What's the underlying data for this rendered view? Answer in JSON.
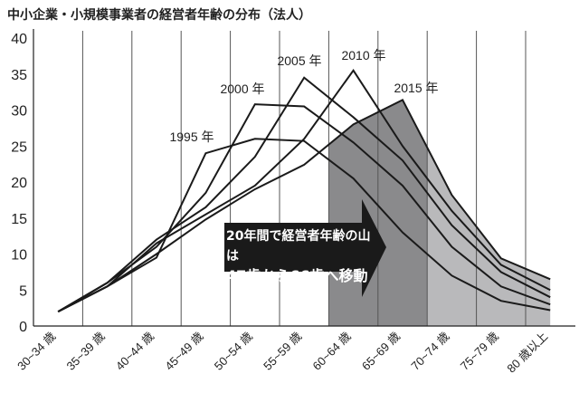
{
  "chart_data": {
    "type": "line",
    "title": "中小企業・小規模事業者の経営者年齢の分布（法人）",
    "xlabel": "",
    "ylabel": "",
    "ylim": [
      0,
      40
    ],
    "yticks": [
      0,
      5,
      10,
      15,
      20,
      25,
      30,
      35,
      40
    ],
    "grid": "vertical",
    "categories": [
      "30~34 歳",
      "35~39 歳",
      "40~44 歳",
      "45~49 歳",
      "50~54 歳",
      "55~59 歳",
      "60~64 歳",
      "65~69 歳",
      "70~74 歳",
      "75~79 歳",
      "80 歳以上"
    ],
    "series": [
      {
        "name": "1995 年",
        "values": [
          2,
          5.5,
          9.5,
          24,
          26,
          25.7,
          20.5,
          13,
          7,
          3.5,
          2.2
        ]
      },
      {
        "name": "2000 年",
        "values": [
          2,
          6,
          11,
          18.5,
          30.8,
          30.5,
          25.5,
          19.5,
          11,
          5.5,
          3
        ]
      },
      {
        "name": "2005 年",
        "values": [
          2,
          6,
          12,
          16.5,
          23.5,
          34.5,
          29,
          23,
          14,
          7.5,
          4
        ]
      },
      {
        "name": "2010 年",
        "values": [
          2,
          5.5,
          11.5,
          15.5,
          19.5,
          26,
          35.5,
          25,
          16,
          8.5,
          5
        ]
      },
      {
        "name": "2015 年",
        "values": [
          2,
          5.5,
          10,
          14.8,
          19,
          22.4,
          28,
          31.4,
          18.2,
          9.4,
          6.5
        ]
      }
    ],
    "annotation": {
      "line1": "20年間で経営者年齢の山は",
      "line2": "47歳から66歳へ移動"
    },
    "colors": {
      "line": "#1a1a1a",
      "shade_dark": "#8a8a8c",
      "shade_light": "#b9b9bb",
      "arrow": "#1a1a1a",
      "grid": "#555555"
    }
  }
}
